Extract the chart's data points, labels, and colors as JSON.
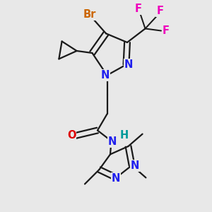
{
  "bg_color": "#e8e8e8",
  "bond_color": "#1a1a1a",
  "bond_width": 1.6,
  "dbl_sep": 0.13,
  "atom_colors": {
    "N": "#2020ee",
    "O": "#dd0000",
    "Br": "#cc6600",
    "F": "#ee00bb",
    "H": "#009999",
    "C": "#1a1a1a"
  },
  "fs": 10.5
}
